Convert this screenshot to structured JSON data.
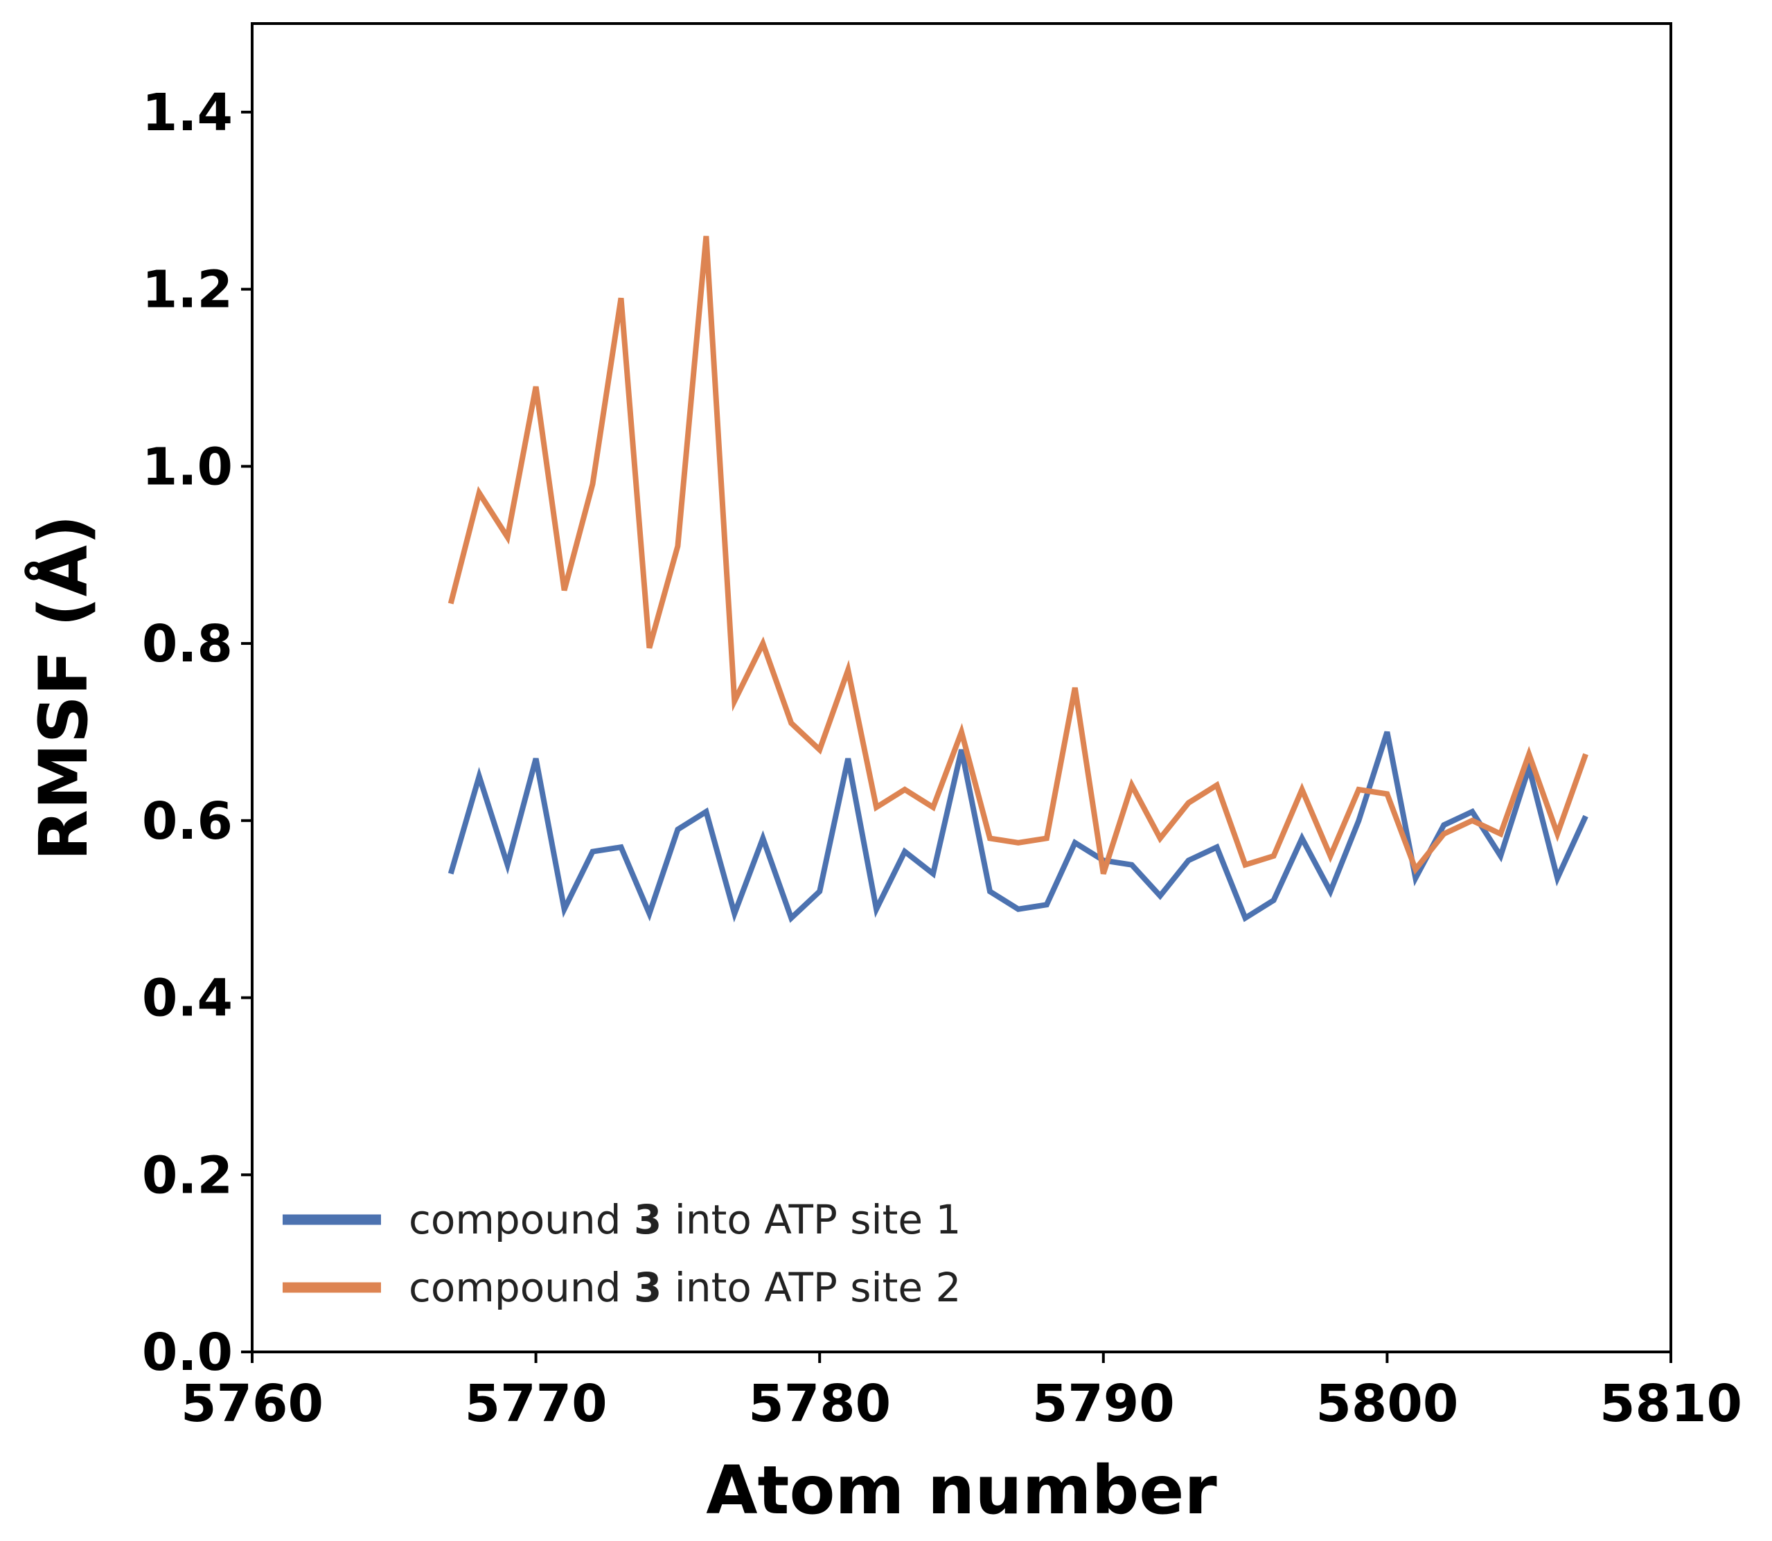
{
  "chart_data": {
    "type": "line",
    "title": "",
    "xlabel": "Atom number",
    "ylabel": "RMSF (Å)",
    "xlim": [
      5760,
      5810
    ],
    "ylim": [
      0.0,
      1.5
    ],
    "xticks": [
      5760,
      5770,
      5780,
      5790,
      5800,
      5810
    ],
    "yticks": [
      0.0,
      0.2,
      0.4,
      0.6,
      0.8,
      1.0,
      1.2,
      1.4
    ],
    "xtick_labels": [
      "5760",
      "5770",
      "5780",
      "5790",
      "5800",
      "5810"
    ],
    "ytick_labels": [
      "0.0",
      "0.2",
      "0.4",
      "0.6",
      "0.8",
      "1.0",
      "1.2",
      "1.4"
    ],
    "grid": false,
    "legend_position": "lower-left",
    "x": [
      5767,
      5768,
      5769,
      5770,
      5771,
      5772,
      5773,
      5774,
      5775,
      5776,
      5777,
      5778,
      5779,
      5780,
      5781,
      5782,
      5783,
      5784,
      5785,
      5786,
      5787,
      5788,
      5789,
      5790,
      5791,
      5792,
      5793,
      5794,
      5795,
      5796,
      5797,
      5798,
      5799,
      5800,
      5801,
      5802,
      5803,
      5804,
      5805,
      5806,
      5807
    ],
    "series": [
      {
        "name": "site1",
        "legend_prefix": "compound ",
        "legend_bold": "3",
        "legend_suffix": " into ATP site 1",
        "color": "#4c72b0",
        "values": [
          0.54,
          0.65,
          0.55,
          0.67,
          0.5,
          0.565,
          0.57,
          0.495,
          0.59,
          0.61,
          0.495,
          0.58,
          0.49,
          0.52,
          0.67,
          0.5,
          0.565,
          0.54,
          0.68,
          0.52,
          0.5,
          0.505,
          0.575,
          0.555,
          0.55,
          0.515,
          0.555,
          0.57,
          0.49,
          0.51,
          0.58,
          0.52,
          0.6,
          0.7,
          0.535,
          0.595,
          0.61,
          0.56,
          0.66,
          0.535,
          0.605
        ]
      },
      {
        "name": "site2",
        "legend_prefix": "compound ",
        "legend_bold": "3",
        "legend_suffix": " into ATP site 2",
        "color": "#dd8452",
        "values": [
          0.845,
          0.97,
          0.92,
          1.09,
          0.86,
          0.98,
          1.19,
          0.795,
          0.91,
          1.26,
          0.735,
          0.8,
          0.71,
          0.68,
          0.77,
          0.615,
          0.635,
          0.615,
          0.7,
          0.58,
          0.575,
          0.58,
          0.75,
          0.54,
          0.64,
          0.58,
          0.62,
          0.64,
          0.55,
          0.56,
          0.635,
          0.56,
          0.635,
          0.63,
          0.545,
          0.585,
          0.6,
          0.585,
          0.675,
          0.585,
          0.675
        ]
      }
    ]
  }
}
